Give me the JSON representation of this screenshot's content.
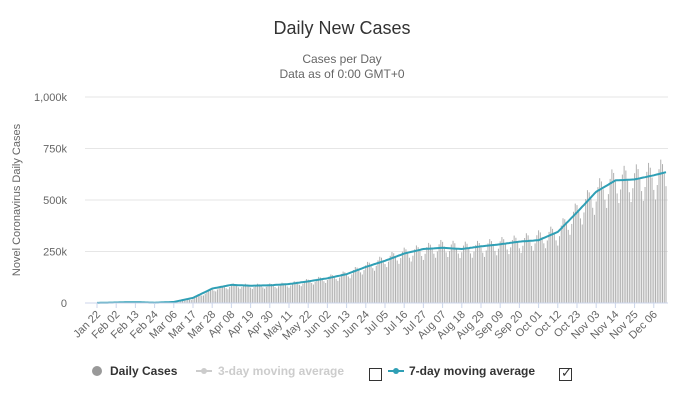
{
  "chart_data": {
    "type": "bar",
    "title": "Daily New Cases",
    "subtitle": [
      "Cases per Day",
      "Data as of 0:00 GMT+0"
    ],
    "ylabel": "Novel Coronavirus Daily Cases",
    "xlabel": "",
    "ylim": [
      0,
      1000000
    ],
    "yticks": [
      "0",
      "250k",
      "500k",
      "750k",
      "1,000k"
    ],
    "grid": true,
    "legend_position": "bottom",
    "x_tick_labels": [
      "Jan 22",
      "Feb 02",
      "Feb 13",
      "Feb 24",
      "Mar 06",
      "Mar 17",
      "Mar 28",
      "Apr 08",
      "Apr 19",
      "Apr 30",
      "May 11",
      "May 22",
      "Jun 02",
      "Jun 13",
      "Jun 24",
      "Jul 05",
      "Jul 16",
      "Jul 27",
      "Aug 07",
      "Aug 18",
      "Aug 29",
      "Sep 09",
      "Sep 20",
      "Oct 01",
      "Oct 12",
      "Oct 23",
      "Nov 03",
      "Nov 14",
      "Nov 25",
      "Dec 06"
    ],
    "series": [
      {
        "name": "Daily Cases",
        "kind": "bar",
        "color": "#b0b0b0",
        "note_weekly_anchors_approx": true,
        "anchor_dates": [
          "Jan 22",
          "Feb 02",
          "Feb 13",
          "Feb 24",
          "Mar 06",
          "Mar 17",
          "Mar 28",
          "Apr 08",
          "Apr 19",
          "Apr 30",
          "May 11",
          "May 22",
          "Jun 02",
          "Jun 13",
          "Jun 24",
          "Jul 05",
          "Jul 16",
          "Jul 27",
          "Aug 07",
          "Aug 18",
          "Aug 29",
          "Sep 09",
          "Sep 20",
          "Oct 01",
          "Oct 12",
          "Oct 23",
          "Nov 03",
          "Nov 14",
          "Nov 25",
          "Dec 06",
          "Dec 13"
        ],
        "anchor_values": [
          500,
          2000,
          4000,
          1500,
          3000,
          20000,
          65000,
          85000,
          83000,
          85000,
          90000,
          105000,
          120000,
          140000,
          175000,
          210000,
          240000,
          255000,
          275000,
          265000,
          270000,
          285000,
          295000,
          315000,
          340000,
          440000,
          530000,
          590000,
          600000,
          610000,
          630000
        ]
      },
      {
        "name": "3-day moving average",
        "kind": "line",
        "color": "#cccccc",
        "visible": false
      },
      {
        "name": "7-day moving average",
        "kind": "line",
        "color": "#2f9fb5",
        "anchor_dates": [
          "Jan 22",
          "Feb 02",
          "Feb 13",
          "Feb 24",
          "Mar 06",
          "Mar 17",
          "Mar 28",
          "Apr 08",
          "Apr 19",
          "Apr 30",
          "May 11",
          "May 22",
          "Jun 02",
          "Jun 13",
          "Jun 24",
          "Jul 05",
          "Jul 16",
          "Jul 27",
          "Aug 07",
          "Aug 18",
          "Aug 29",
          "Sep 09",
          "Sep 20",
          "Oct 01",
          "Oct 12",
          "Oct 23",
          "Nov 03",
          "Nov 14",
          "Nov 25",
          "Dec 06",
          "Dec 13"
        ],
        "anchor_values": [
          500,
          2500,
          4000,
          1500,
          5000,
          25000,
          70000,
          88000,
          84000,
          86000,
          92000,
          105000,
          120000,
          140000,
          175000,
          205000,
          240000,
          262000,
          268000,
          262000,
          275000,
          285000,
          298000,
          305000,
          345000,
          440000,
          540000,
          595000,
          600000,
          620000,
          635000
        ]
      }
    ]
  },
  "legend": {
    "daily_cases": "Daily Cases",
    "three_day": "3-day moving average",
    "seven_day": "7-day moving average",
    "three_day_checked": false,
    "seven_day_checked": true
  }
}
